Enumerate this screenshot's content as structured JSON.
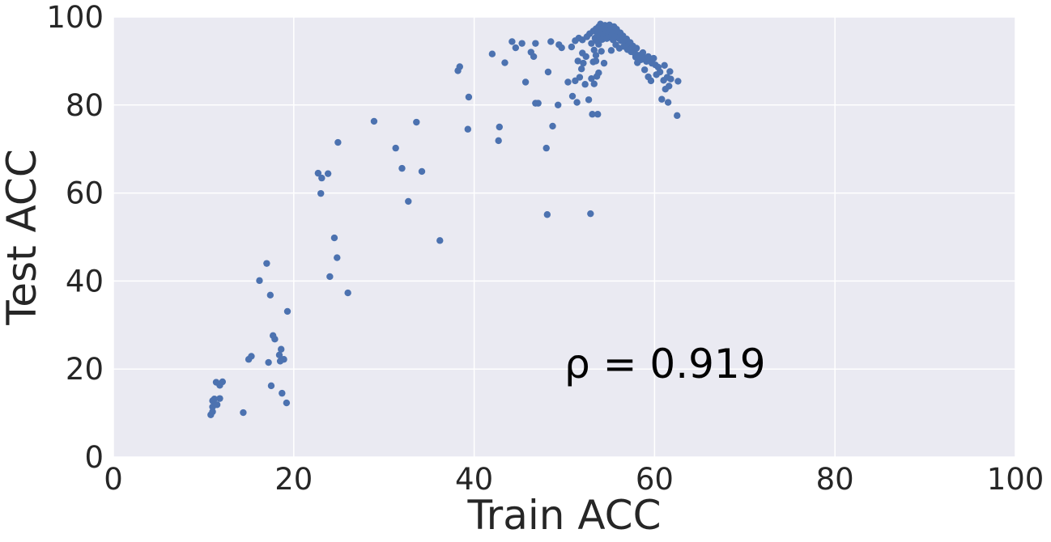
{
  "chart_data": {
    "type": "scatter",
    "title": "",
    "xlabel": "Train ACC",
    "ylabel": "Test ACC",
    "xlim": [
      0,
      100
    ],
    "ylim": [
      0,
      100
    ],
    "xticks": [
      "0",
      "20",
      "40",
      "60",
      "80",
      "100"
    ],
    "yticks": [
      "0",
      "20",
      "40",
      "60",
      "80",
      "100"
    ],
    "grid": true,
    "legend": "none",
    "annotation": {
      "text": "ρ = 0.919",
      "x": 50,
      "y": 18
    },
    "colors": {
      "background": "#EAEAF2",
      "grid": "#FFFFFF",
      "point": "#4C72B0"
    },
    "series": [
      {
        "points": [
          [
            10.8,
            9.6
          ],
          [
            11.0,
            10.3
          ],
          [
            11.0,
            12.8
          ],
          [
            11.2,
            13.2
          ],
          [
            11.0,
            11.4
          ],
          [
            11.5,
            11.9
          ],
          [
            11.4,
            17.0
          ],
          [
            11.8,
            16.3
          ],
          [
            12.1,
            17.1
          ],
          [
            11.8,
            13.3
          ],
          [
            14.4,
            10.1
          ],
          [
            15.0,
            22.2
          ],
          [
            15.3,
            22.9
          ],
          [
            16.2,
            40.1
          ],
          [
            17.0,
            44.0
          ],
          [
            17.2,
            21.5
          ],
          [
            17.4,
            36.8
          ],
          [
            17.5,
            16.2
          ],
          [
            17.7,
            27.6
          ],
          [
            17.9,
            26.8
          ],
          [
            18.4,
            23.2
          ],
          [
            18.5,
            21.8
          ],
          [
            18.6,
            24.5
          ],
          [
            18.7,
            14.5
          ],
          [
            18.9,
            22.2
          ],
          [
            19.2,
            12.3
          ],
          [
            19.3,
            33.1
          ],
          [
            22.7,
            64.5
          ],
          [
            23.0,
            59.9
          ],
          [
            23.1,
            63.4
          ],
          [
            23.8,
            64.4
          ],
          [
            24.0,
            41.0
          ],
          [
            24.5,
            49.8
          ],
          [
            24.8,
            45.3
          ],
          [
            24.9,
            71.5
          ],
          [
            26.0,
            37.3
          ],
          [
            28.9,
            76.3
          ],
          [
            31.3,
            70.2
          ],
          [
            32.0,
            65.6
          ],
          [
            32.7,
            58.1
          ],
          [
            33.6,
            76.1
          ],
          [
            34.2,
            64.9
          ],
          [
            36.2,
            49.2
          ],
          [
            38.2,
            87.8
          ],
          [
            38.4,
            88.7
          ],
          [
            39.3,
            74.5
          ],
          [
            39.4,
            81.8
          ],
          [
            42.0,
            91.6
          ],
          [
            42.7,
            71.9
          ],
          [
            42.8,
            75.0
          ],
          [
            43.4,
            89.6
          ],
          [
            44.2,
            94.4
          ],
          [
            44.6,
            93.0
          ],
          [
            45.3,
            94.0
          ],
          [
            45.7,
            85.2
          ],
          [
            46.3,
            92.0
          ],
          [
            46.6,
            91.0
          ],
          [
            46.8,
            80.4
          ],
          [
            46.8,
            94.0
          ],
          [
            47.1,
            80.4
          ],
          [
            48.0,
            70.2
          ],
          [
            48.1,
            55.1
          ],
          [
            48.2,
            87.5
          ],
          [
            48.5,
            94.4
          ],
          [
            48.7,
            75.2
          ],
          [
            49.3,
            80.0
          ],
          [
            49.4,
            93.7
          ],
          [
            49.7,
            93.0
          ],
          [
            50.4,
            85.2
          ],
          [
            50.8,
            93.2
          ],
          [
            50.9,
            82.0
          ],
          [
            51.2,
            85.5
          ],
          [
            51.4,
            80.6
          ],
          [
            51.2,
            94.6
          ],
          [
            51.5,
            90.0
          ],
          [
            51.7,
            86.3
          ],
          [
            51.9,
            88.2
          ],
          [
            51.6,
            95.2
          ],
          [
            52.0,
            91.8
          ],
          [
            52.1,
            89.5
          ],
          [
            52.3,
            84.7
          ],
          [
            52.4,
            91.0
          ],
          [
            52.7,
            81.2
          ],
          [
            52.9,
            55.3
          ],
          [
            53.0,
            86.0
          ],
          [
            53.1,
            77.9
          ],
          [
            53.3,
            84.8
          ],
          [
            53.5,
            90.0
          ],
          [
            53.6,
            86.5
          ],
          [
            53.8,
            87.3
          ],
          [
            53.7,
            77.9
          ],
          [
            53.2,
            89.8
          ],
          [
            54.4,
            89.5
          ],
          [
            52.0,
            94.8
          ],
          [
            52.5,
            95.5
          ],
          [
            52.8,
            96.2
          ],
          [
            53.0,
            94.0
          ],
          [
            53.2,
            96.8
          ],
          [
            53.4,
            95.2
          ],
          [
            53.5,
            97.3
          ],
          [
            53.6,
            94.6
          ],
          [
            53.7,
            96.0
          ],
          [
            53.8,
            97.8
          ],
          [
            53.9,
            95.7
          ],
          [
            54.0,
            98.4
          ],
          [
            54.1,
            96.6
          ],
          [
            54.2,
            94.9
          ],
          [
            54.3,
            97.4
          ],
          [
            54.4,
            95.6
          ],
          [
            54.5,
            98.1
          ],
          [
            54.6,
            96.9
          ],
          [
            54.7,
            95.1
          ],
          [
            54.8,
            97.6
          ],
          [
            54.9,
            96.2
          ],
          [
            55.0,
            98.2
          ],
          [
            55.1,
            95.4
          ],
          [
            55.2,
            97.0
          ],
          [
            55.3,
            96.0
          ],
          [
            55.4,
            94.8
          ],
          [
            55.5,
            97.8
          ],
          [
            55.6,
            96.5
          ],
          [
            55.7,
            95.6
          ],
          [
            55.8,
            97.2
          ],
          [
            55.9,
            96.0
          ],
          [
            56.0,
            95.2
          ],
          [
            56.2,
            96.4
          ],
          [
            56.3,
            94.6
          ],
          [
            56.5,
            95.7
          ],
          [
            56.7,
            94.2
          ],
          [
            56.9,
            95.0
          ],
          [
            57.1,
            93.6
          ],
          [
            53.3,
            92.5
          ],
          [
            53.5,
            91.3
          ],
          [
            53.8,
            93.8
          ],
          [
            54.1,
            92.2
          ],
          [
            55.2,
            92.4
          ],
          [
            55.7,
            93.7
          ],
          [
            56.1,
            92.9
          ],
          [
            56.6,
            93.3
          ],
          [
            57.0,
            92.6
          ],
          [
            57.3,
            94.2
          ],
          [
            57.4,
            92.1
          ],
          [
            57.6,
            93.4
          ],
          [
            57.8,
            91.8
          ],
          [
            58.0,
            92.9
          ],
          [
            57.9,
            90.9
          ],
          [
            58.1,
            89.6
          ],
          [
            58.3,
            91.3
          ],
          [
            58.5,
            90.3
          ],
          [
            58.7,
            91.9
          ],
          [
            58.9,
            90.7
          ],
          [
            59.1,
            89.9
          ],
          [
            59.3,
            91.0
          ],
          [
            59.5,
            90.2
          ],
          [
            59.7,
            89.5
          ],
          [
            59.9,
            90.6
          ],
          [
            60.1,
            89.1
          ],
          [
            58.9,
            88.0
          ],
          [
            59.3,
            86.4
          ],
          [
            59.6,
            85.5
          ],
          [
            60.2,
            86.9
          ],
          [
            60.4,
            88.6
          ],
          [
            60.6,
            87.5
          ],
          [
            60.8,
            81.3
          ],
          [
            61.0,
            85.6
          ],
          [
            61.2,
            83.6
          ],
          [
            61.4,
            86.3
          ],
          [
            61.5,
            80.6
          ],
          [
            61.6,
            84.3
          ],
          [
            61.8,
            85.9
          ],
          [
            61.7,
            87.6
          ],
          [
            61.1,
            89.0
          ],
          [
            62.6,
            85.4
          ],
          [
            62.5,
            77.6
          ]
        ]
      }
    ]
  }
}
